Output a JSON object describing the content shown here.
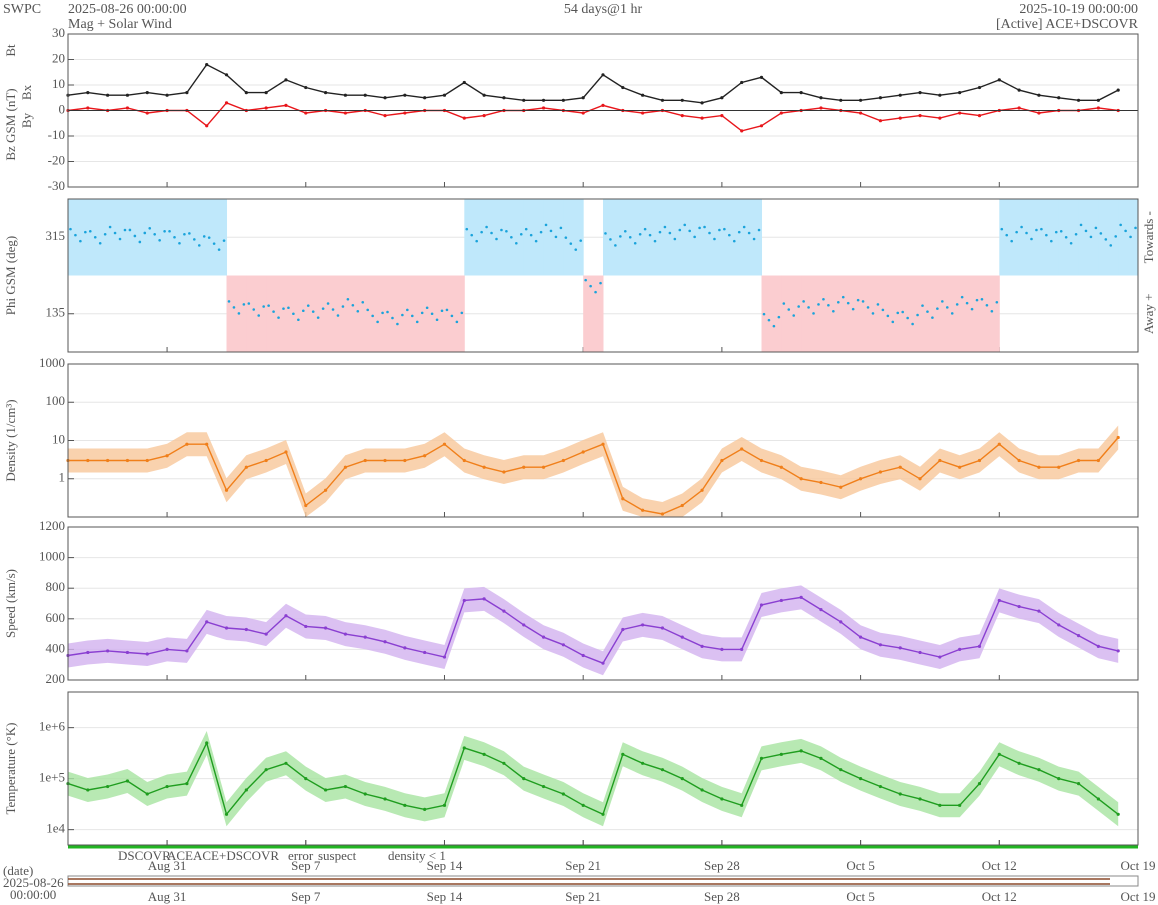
{
  "header": {
    "org": "SWPC",
    "start": "2025-08-26 00:00:00",
    "product": "Mag + Solar Wind",
    "span": "54 days@1 hr",
    "end": "2025-10-19 00:00:00",
    "source": "[Active] ACE+DSCOVR"
  },
  "time": {
    "x": [
      0,
      1,
      2,
      3,
      4,
      5,
      6,
      7,
      8,
      9,
      10,
      11,
      12,
      13,
      14,
      15,
      16,
      17,
      18,
      19,
      20,
      21,
      22,
      23,
      24,
      25,
      26,
      27,
      28,
      29,
      30,
      31,
      32,
      33,
      34,
      35,
      36,
      37,
      38,
      39,
      40,
      41,
      42,
      43,
      44,
      45,
      46,
      47,
      48,
      49,
      50,
      51,
      52,
      53
    ],
    "xlim": [
      0,
      54
    ],
    "xticks": [
      {
        "value": 5,
        "label": "Aug 31"
      },
      {
        "value": 12,
        "label": "Sep 7"
      },
      {
        "value": 19,
        "label": "Sep 14"
      },
      {
        "value": 26,
        "label": "Sep 21"
      },
      {
        "value": 33,
        "label": "Sep 28"
      },
      {
        "value": 40,
        "label": "Oct 5"
      },
      {
        "value": 47,
        "label": "Oct 12"
      },
      {
        "value": 54,
        "label": "Oct 19"
      }
    ],
    "date_label": "(date)",
    "date_start": "2025-08-26",
    "time_start": "00:00:00"
  },
  "chart_data": [
    {
      "type": "line",
      "ylabels": [
        {
          "text": "Bt",
          "color": "#000000"
        },
        {
          "text": "Bz GSM (nT)",
          "color": "#e8161b"
        },
        {
          "text": "Bx",
          "color": "#9b4fd8"
        },
        {
          "text": "By",
          "color": "#27b6e0"
        }
      ],
      "ylim": [
        -30,
        30
      ],
      "yticks": [
        -30,
        -20,
        -10,
        0,
        10,
        20,
        30
      ],
      "series": [
        {
          "name": "Bt",
          "color": "#222222",
          "values": [
            6,
            7,
            6,
            6,
            7,
            6,
            7,
            18,
            14,
            7,
            7,
            12,
            9,
            7,
            6,
            6,
            5,
            6,
            5,
            6,
            11,
            6,
            5,
            4,
            4,
            4,
            5,
            14,
            9,
            6,
            4,
            4,
            3,
            5,
            11,
            13,
            7,
            7,
            5,
            4,
            4,
            5,
            6,
            7,
            6,
            7,
            9,
            12,
            8,
            6,
            5,
            4,
            4,
            8
          ]
        },
        {
          "name": "Bz GSM",
          "color": "#e8161b",
          "values": [
            0,
            1,
            0,
            1,
            -1,
            0,
            0,
            -6,
            3,
            0,
            1,
            2,
            -1,
            0,
            -1,
            0,
            -2,
            -1,
            0,
            0,
            -3,
            -2,
            0,
            0,
            1,
            0,
            -1,
            2,
            0,
            -1,
            0,
            -2,
            -3,
            -2,
            -8,
            -6,
            -1,
            0,
            1,
            0,
            -1,
            -4,
            -3,
            -2,
            -3,
            -1,
            -2,
            0,
            1,
            -1,
            0,
            0,
            1,
            0
          ]
        }
      ]
    },
    {
      "type": "scatter",
      "ylabels": [
        {
          "text": "Phi GSM (deg)",
          "color": "#27b6e0"
        }
      ],
      "right_labels": [
        "Towards -",
        "Away +"
      ],
      "sector_colors": [
        "#bfe8fb",
        "#fbcdd0"
      ],
      "ylim": [
        45,
        405
      ],
      "yticks": [
        135,
        315
      ],
      "series": [
        {
          "name": "Phi GSM",
          "color": "#1aa3db",
          "values": [
            320,
            315,
            325,
            318,
            322,
            315,
            310,
            300,
            150,
            145,
            140,
            135,
            140,
            145,
            155,
            130,
            125,
            130,
            135,
            130,
            320,
            325,
            315,
            320,
            330,
            300,
            200,
            310,
            315,
            320,
            325,
            330,
            325,
            320,
            325,
            120,
            145,
            150,
            155,
            160,
            150,
            130,
            125,
            140,
            150,
            160,
            155,
            320,
            325,
            320,
            315,
            330,
            310,
            330
          ]
        }
      ]
    },
    {
      "type": "line",
      "log": true,
      "ylabels": [
        {
          "text": "Density (1/cm³)",
          "color": "#f07f1a"
        }
      ],
      "band_color": "#f8c79a",
      "ylim": [
        0.1,
        1000
      ],
      "yticks": [
        1,
        10,
        100,
        1000
      ],
      "series": [
        {
          "name": "Density",
          "color": "#f07f1a",
          "values": [
            3,
            3,
            3,
            3,
            3,
            4,
            8,
            8,
            0.5,
            2,
            3,
            5,
            0.2,
            0.5,
            2,
            3,
            3,
            3,
            4,
            8,
            3,
            2,
            1.5,
            2,
            2,
            3,
            5,
            8,
            0.3,
            0.15,
            0.12,
            0.2,
            0.5,
            3,
            6,
            3,
            2,
            1,
            0.8,
            0.6,
            1,
            1.5,
            2,
            1,
            3,
            2,
            3,
            8,
            3,
            2,
            2,
            3,
            3,
            12
          ]
        }
      ]
    },
    {
      "type": "line",
      "ylabels": [
        {
          "text": "Speed (km/s)",
          "color": "#8a3fd1"
        }
      ],
      "band_color": "#d2b2ef",
      "ylim": [
        200,
        1200
      ],
      "yticks": [
        200,
        400,
        600,
        800,
        1000,
        1200
      ],
      "series": [
        {
          "name": "Speed",
          "color": "#8a3fd1",
          "values": [
            360,
            380,
            390,
            380,
            370,
            400,
            390,
            580,
            540,
            530,
            500,
            620,
            550,
            540,
            500,
            480,
            450,
            410,
            380,
            350,
            720,
            730,
            650,
            560,
            480,
            430,
            360,
            310,
            530,
            560,
            540,
            480,
            420,
            400,
            400,
            690,
            720,
            740,
            660,
            580,
            480,
            430,
            410,
            380,
            350,
            400,
            420,
            720,
            680,
            650,
            560,
            490,
            420,
            390
          ]
        }
      ]
    },
    {
      "type": "line",
      "log": true,
      "ylabels": [
        {
          "text": "Temperature (°K)",
          "color": "#26b026"
        }
      ],
      "band_color": "#a6e3a0",
      "ylim": [
        5000,
        5000000
      ],
      "yticks": [
        {
          "value": 10000,
          "label": "1e4"
        },
        {
          "value": 100000,
          "label": "1e+5"
        },
        {
          "value": 1000000,
          "label": "1e+6"
        }
      ],
      "series": [
        {
          "name": "Temperature",
          "color": "#1f9d1f",
          "values": [
            80000,
            60000,
            70000,
            90000,
            50000,
            70000,
            80000,
            500000,
            20000,
            60000,
            150000,
            200000,
            100000,
            60000,
            70000,
            50000,
            40000,
            30000,
            25000,
            30000,
            400000,
            300000,
            200000,
            100000,
            70000,
            50000,
            30000,
            20000,
            300000,
            200000,
            150000,
            100000,
            60000,
            40000,
            30000,
            250000,
            300000,
            350000,
            250000,
            150000,
            100000,
            70000,
            50000,
            40000,
            30000,
            30000,
            80000,
            300000,
            200000,
            150000,
            100000,
            80000,
            40000,
            20000
          ]
        }
      ]
    }
  ],
  "legend": [
    {
      "text": "DSCOVR",
      "color": "#1b1bd0"
    },
    {
      "text": "ACE",
      "color": "#1faa1f"
    },
    {
      "text": "ACE+DSCOVR",
      "color": "#d21bd2"
    },
    {
      "text": "error",
      "color": "#e8161b"
    },
    {
      "text": "suspect",
      "color": "#f0b000"
    },
    {
      "text": "density < 1",
      "color": "#f07f1a"
    }
  ]
}
